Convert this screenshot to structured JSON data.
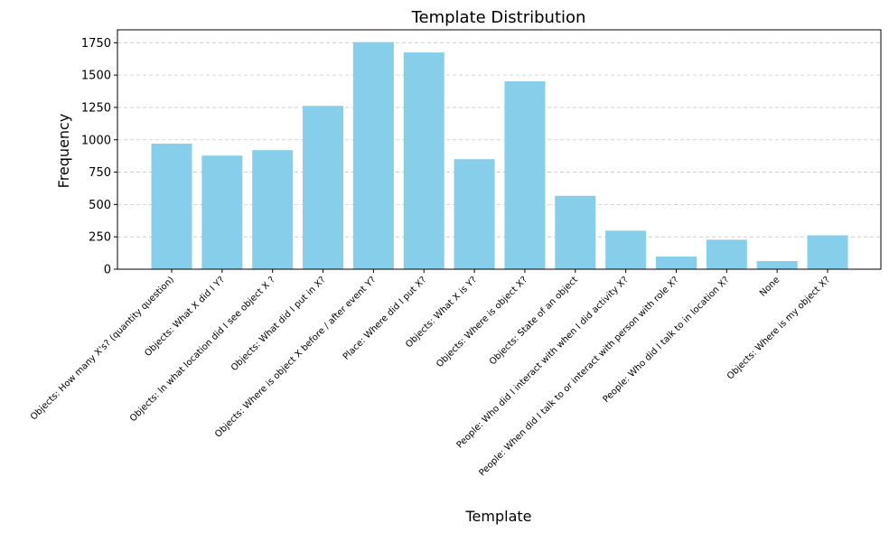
{
  "chart_data": {
    "type": "bar",
    "title": "Template Distribution",
    "xlabel": "Template",
    "ylabel": "Frequency",
    "ylim": [
      0,
      1850
    ],
    "yticks": [
      0,
      250,
      500,
      750,
      1000,
      1250,
      1500,
      1750
    ],
    "grid": "y-dashed",
    "bar_color": "#87ceeb",
    "grid_color": "#c8c8c8",
    "categories": [
      "Objects: How many X's? (quantity question)",
      "Objects: What X did I Y?",
      "Objects: In what location did I see object X ?",
      "Objects: What did I put in X?",
      "Objects: Where is object X before / after event Y?",
      "Place: Where did I put X?",
      "Objects: What X is Y?",
      "Objects: Where is object X?",
      "Objects: State of an object",
      "People: Who did I interact with when I did activity X?",
      "People: When did I talk to or interact with person with role X?",
      "People: Who did I talk to in location X?",
      "None",
      "Objects: Where is my object X?"
    ],
    "values": [
      970,
      878,
      920,
      1262,
      1755,
      1675,
      850,
      1452,
      567,
      298,
      98,
      228,
      63,
      262
    ]
  }
}
